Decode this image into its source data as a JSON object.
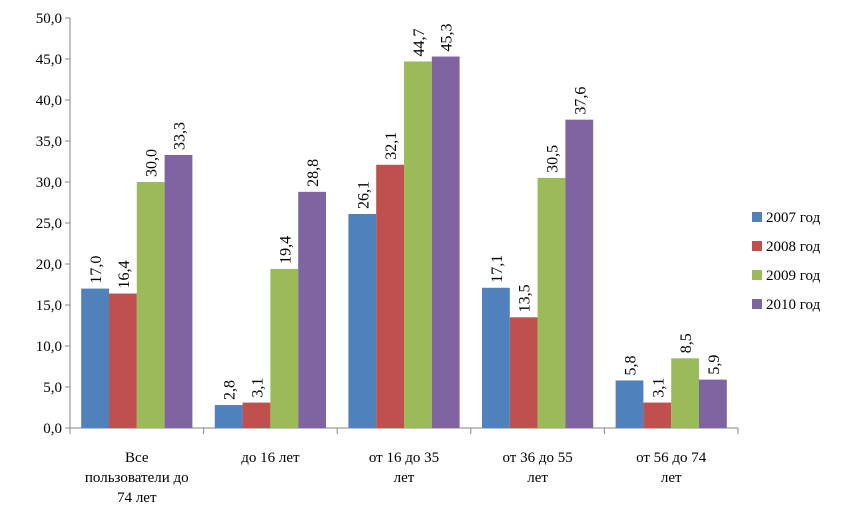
{
  "chart_data": {
    "type": "bar",
    "categories": [
      [
        "Все",
        "пользователи до",
        "74 лет"
      ],
      [
        "до 16 лет"
      ],
      [
        "от 16 до 35",
        "лет"
      ],
      [
        "от 36 до 55",
        "лет"
      ],
      [
        "от 56 до 74",
        "лет"
      ]
    ],
    "series": [
      {
        "name": "2007 год",
        "color": "#4F81BD",
        "values": [
          17.0,
          2.8,
          26.1,
          17.1,
          5.8
        ],
        "labels": [
          "17,0",
          "2,8",
          "26,1",
          "17,1",
          "5,8"
        ]
      },
      {
        "name": "2008 год",
        "color": "#C0504D",
        "values": [
          16.4,
          3.1,
          32.1,
          13.5,
          3.1
        ],
        "labels": [
          "16,4",
          "3,1",
          "32,1",
          "13,5",
          "3,1"
        ]
      },
      {
        "name": "2009 год",
        "color": "#9BBB59",
        "values": [
          30.0,
          19.4,
          44.7,
          30.5,
          8.5
        ],
        "labels": [
          "30,0",
          "19,4",
          "44,7",
          "30,5",
          "8,5"
        ]
      },
      {
        "name": "2010 год",
        "color": "#8064A2",
        "values": [
          33.3,
          28.8,
          45.3,
          37.6,
          5.9
        ],
        "labels": [
          "33,3",
          "28,8",
          "45,3",
          "37,6",
          "5,9"
        ]
      }
    ],
    "ylim": [
      0,
      50
    ],
    "yticks": [
      "0,0",
      "5,0",
      "10,0",
      "15,0",
      "20,0",
      "25,0",
      "30,0",
      "35,0",
      "40,0",
      "45,0",
      "50,0"
    ],
    "grid": false,
    "legend": "right",
    "title": "",
    "xlabel": "",
    "ylabel": ""
  }
}
